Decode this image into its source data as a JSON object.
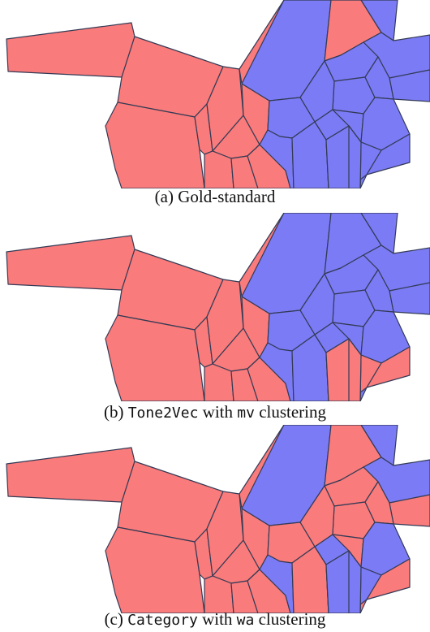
{
  "colors": {
    "red": "#f97b7b",
    "blue": "#7b7bf5",
    "edge": "#333a55"
  },
  "panels": [
    {
      "caption": {
        "label": "(a)",
        "pre": "Gold-standard",
        "mono1": "",
        "mid": "",
        "mono2": "",
        "post": ""
      },
      "blue": [
        "t2",
        "t4",
        "t5",
        "t6",
        "t7",
        "t8",
        "t9",
        "t10",
        "t11",
        "t12",
        "t13",
        "t14",
        "t15",
        "t16",
        "t17",
        "t18",
        "t19",
        "t20",
        "t21",
        "t22"
      ]
    },
    {
      "caption": {
        "label": "(b)",
        "pre": "",
        "mono1": "Tone2Vec",
        "mid": " with ",
        "mono2": "mv",
        "post": " clustering"
      },
      "blue": [
        "t2",
        "t3",
        "t4",
        "t5",
        "t6",
        "t7",
        "t8",
        "t9",
        "t10",
        "t11",
        "t12",
        "t13",
        "t14",
        "t15",
        "t16",
        "t17",
        "t18"
      ]
    },
    {
      "caption": {
        "label": "(c)",
        "pre": "",
        "mono1": "Category",
        "mid": " with ",
        "mono2": "wa",
        "post": " clustering"
      },
      "blue": [
        "t2",
        "t4",
        "t5",
        "t12",
        "t14",
        "t16",
        "t19",
        "t20",
        "t21"
      ]
    }
  ]
}
